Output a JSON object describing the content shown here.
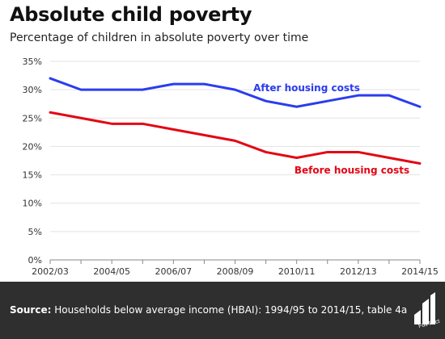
{
  "header": {
    "title": "Absolute child poverty",
    "subtitle": "Percentage of children in absolute poverty over time"
  },
  "footer": {
    "source_label": "Source:",
    "source_text": "Households below average income (HBAI): 1994/95 to 2014/15, table 4a",
    "logo_text": "Full Fact"
  },
  "chart_data": {
    "type": "line",
    "x": [
      "2002/03",
      "2003/04",
      "2004/05",
      "2005/06",
      "2006/07",
      "2007/08",
      "2008/09",
      "2009/10",
      "2010/11",
      "2011/12",
      "2012/13",
      "2013/14",
      "2014/15"
    ],
    "x_tick_labels": [
      "2002/03",
      "2004/05",
      "2006/07",
      "2008/09",
      "2010/11",
      "2012/13",
      "2014/15"
    ],
    "ylim": [
      0,
      35
    ],
    "y_ticks": [
      0,
      5,
      10,
      15,
      20,
      25,
      30,
      35
    ],
    "y_unit": "%",
    "grid": "horizontal",
    "series": [
      {
        "name": "After housing costs",
        "color": "#2b3cf0",
        "values": [
          32,
          30,
          30,
          30,
          31,
          31,
          30,
          28,
          27,
          28,
          29,
          29,
          27
        ]
      },
      {
        "name": "Before housing costs",
        "color": "#e30613",
        "values": [
          26,
          25,
          24,
          24,
          23,
          22,
          21,
          19,
          18,
          19,
          19,
          18,
          17
        ]
      }
    ]
  }
}
